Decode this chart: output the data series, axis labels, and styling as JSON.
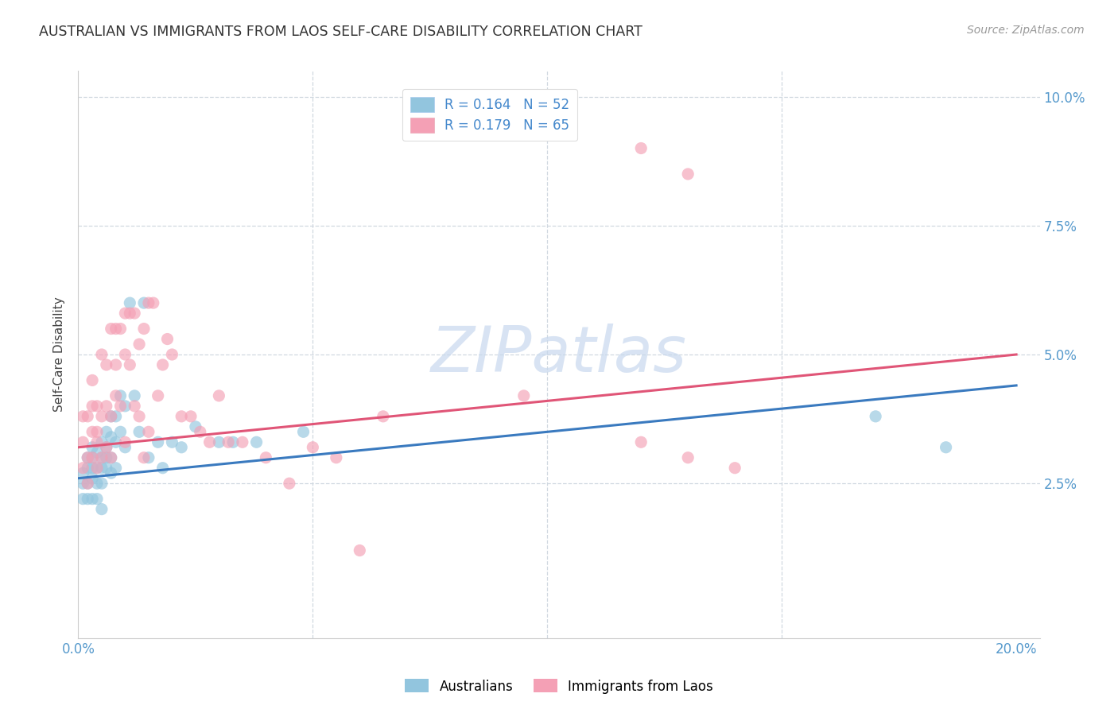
{
  "title": "AUSTRALIAN VS IMMIGRANTS FROM LAOS SELF-CARE DISABILITY CORRELATION CHART",
  "source": "Source: ZipAtlas.com",
  "ylabel": "Self-Care Disability",
  "xlim": [
    0.0,
    0.205
  ],
  "ylim": [
    -0.005,
    0.105
  ],
  "color_blue": "#92c5de",
  "color_pink": "#f4a0b5",
  "color_blue_line": "#3a7abf",
  "color_pink_line": "#e05577",
  "watermark_color": "#c8d8ee",
  "aus_x": [
    0.001,
    0.001,
    0.001,
    0.002,
    0.002,
    0.002,
    0.002,
    0.003,
    0.003,
    0.003,
    0.003,
    0.003,
    0.004,
    0.004,
    0.004,
    0.004,
    0.005,
    0.005,
    0.005,
    0.005,
    0.005,
    0.006,
    0.006,
    0.006,
    0.006,
    0.007,
    0.007,
    0.007,
    0.007,
    0.008,
    0.008,
    0.008,
    0.009,
    0.009,
    0.01,
    0.01,
    0.011,
    0.012,
    0.013,
    0.014,
    0.015,
    0.017,
    0.018,
    0.02,
    0.022,
    0.025,
    0.03,
    0.033,
    0.038,
    0.048,
    0.17,
    0.185
  ],
  "aus_y": [
    0.025,
    0.027,
    0.022,
    0.028,
    0.025,
    0.03,
    0.022,
    0.03,
    0.026,
    0.022,
    0.032,
    0.028,
    0.028,
    0.031,
    0.025,
    0.022,
    0.03,
    0.033,
    0.028,
    0.025,
    0.02,
    0.032,
    0.035,
    0.028,
    0.03,
    0.038,
    0.034,
    0.03,
    0.027,
    0.038,
    0.033,
    0.028,
    0.042,
    0.035,
    0.04,
    0.032,
    0.06,
    0.042,
    0.035,
    0.06,
    0.03,
    0.033,
    0.028,
    0.033,
    0.032,
    0.036,
    0.033,
    0.033,
    0.033,
    0.035,
    0.038,
    0.032
  ],
  "laos_x": [
    0.001,
    0.001,
    0.001,
    0.002,
    0.002,
    0.002,
    0.003,
    0.003,
    0.003,
    0.003,
    0.004,
    0.004,
    0.004,
    0.004,
    0.005,
    0.005,
    0.005,
    0.006,
    0.006,
    0.006,
    0.007,
    0.007,
    0.007,
    0.008,
    0.008,
    0.008,
    0.009,
    0.009,
    0.01,
    0.01,
    0.01,
    0.011,
    0.011,
    0.012,
    0.012,
    0.013,
    0.013,
    0.014,
    0.014,
    0.015,
    0.015,
    0.016,
    0.017,
    0.018,
    0.019,
    0.02,
    0.022,
    0.024,
    0.026,
    0.028,
    0.03,
    0.032,
    0.035,
    0.04,
    0.045,
    0.05,
    0.055,
    0.06,
    0.065,
    0.095,
    0.12,
    0.13,
    0.14,
    0.12,
    0.13
  ],
  "laos_y": [
    0.033,
    0.028,
    0.038,
    0.03,
    0.038,
    0.025,
    0.035,
    0.045,
    0.03,
    0.04,
    0.033,
    0.04,
    0.028,
    0.035,
    0.05,
    0.038,
    0.03,
    0.048,
    0.032,
    0.04,
    0.055,
    0.038,
    0.03,
    0.042,
    0.055,
    0.048,
    0.04,
    0.055,
    0.058,
    0.05,
    0.033,
    0.048,
    0.058,
    0.058,
    0.04,
    0.052,
    0.038,
    0.055,
    0.03,
    0.06,
    0.035,
    0.06,
    0.042,
    0.048,
    0.053,
    0.05,
    0.038,
    0.038,
    0.035,
    0.033,
    0.042,
    0.033,
    0.033,
    0.03,
    0.025,
    0.032,
    0.03,
    0.012,
    0.038,
    0.042,
    0.033,
    0.03,
    0.028,
    0.09,
    0.085
  ],
  "blue_line_x0": 0.0,
  "blue_line_y0": 0.026,
  "blue_line_x1": 0.2,
  "blue_line_y1": 0.044,
  "pink_line_x0": 0.0,
  "pink_line_y0": 0.032,
  "pink_line_x1": 0.2,
  "pink_line_y1": 0.05
}
